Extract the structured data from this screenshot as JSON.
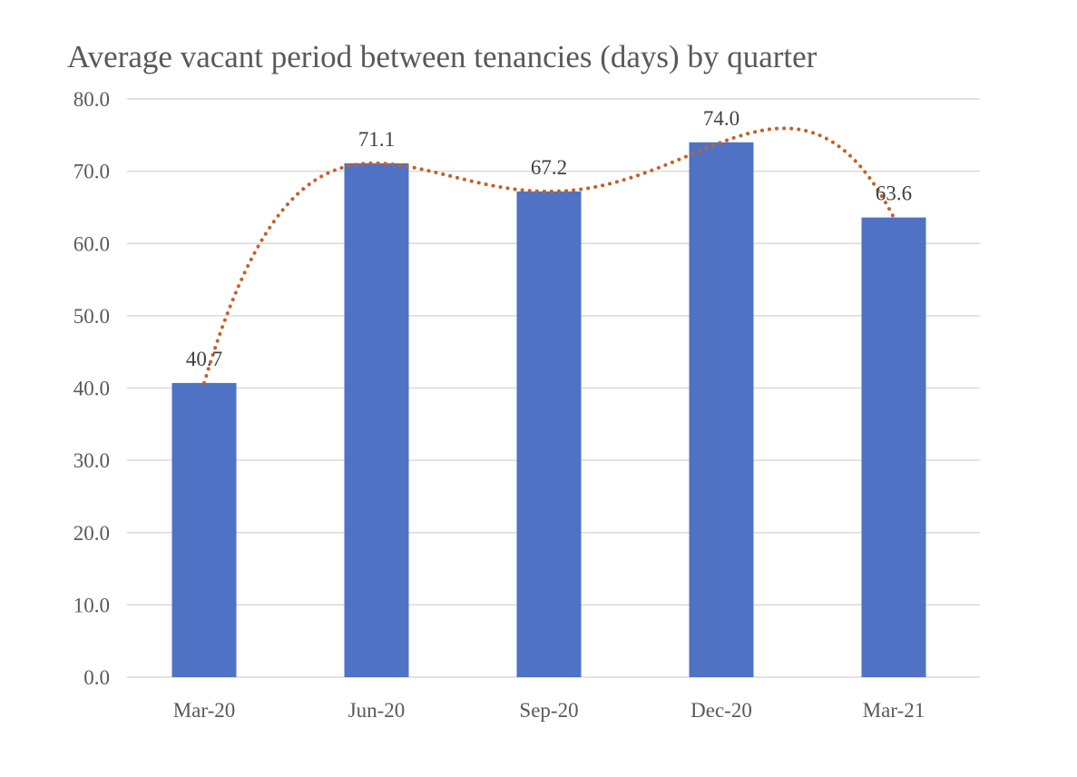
{
  "chart_data": {
    "type": "bar",
    "title": "Average vacant period between tenancies (days) by quarter",
    "xlabel": "",
    "ylabel": "",
    "categories": [
      "Mar-20",
      "Jun-20",
      "Sep-20",
      "Dec-20",
      "Mar-21"
    ],
    "values": [
      40.7,
      71.1,
      67.2,
      74.0,
      63.6
    ],
    "data_labels": [
      "40.7",
      "71.1",
      "67.2",
      "74.0",
      "63.6"
    ],
    "ylim": [
      0,
      80
    ],
    "y_ticks": [
      "0.0",
      "10.0",
      "20.0",
      "30.0",
      "40.0",
      "50.0",
      "60.0",
      "70.0",
      "80.0"
    ],
    "grid": true,
    "legend": "none",
    "trendline": {
      "type": "polynomial",
      "style": "dotted"
    },
    "colors": {
      "bar": "#4f72c4",
      "trendline": "#c0622a",
      "gridline": "#d9d9d9",
      "text": "#595959"
    }
  }
}
